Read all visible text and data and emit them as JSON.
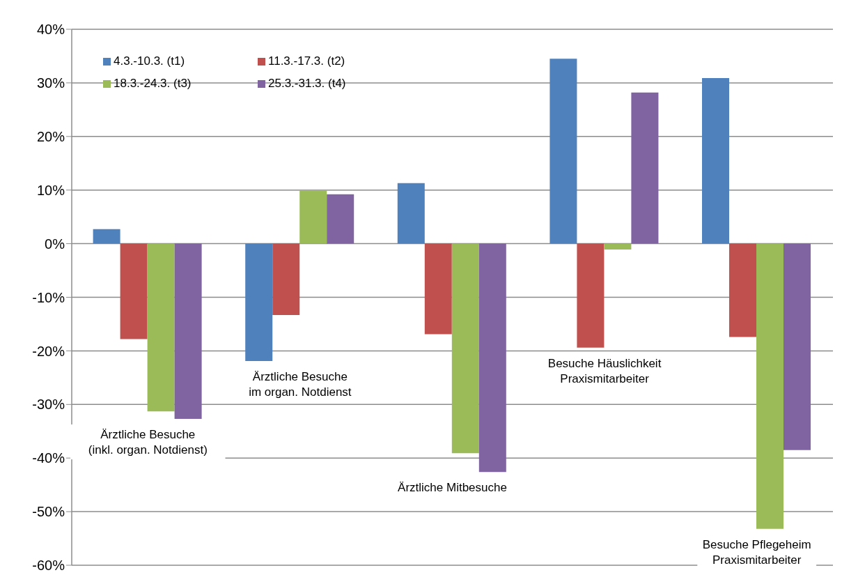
{
  "chart_data": {
    "type": "bar",
    "categories": [
      "Ärztliche Besuche\n(inkl. organ. Notdienst)",
      "Ärztliche Besuche\nim organ. Notdienst",
      "Ärztliche Mitbesuche",
      "Besuche Häuslichkeit\nPraxismitarbeiter",
      "Besuche Pflegeheim\nPraxismitarbeiter"
    ],
    "series": [
      {
        "name": "4.3.-10.3. (t1)",
        "color": "#4f81bd",
        "values": [
          2.7,
          -21.9,
          11.3,
          34.5,
          30.9
        ]
      },
      {
        "name": "11.3.-17.3. (t2)",
        "color": "#c0504d",
        "values": [
          -17.8,
          -13.3,
          -16.9,
          -19.4,
          -17.4
        ]
      },
      {
        "name": "18.3.-24.3. (t3)",
        "color": "#9bbb59",
        "values": [
          -31.3,
          9.9,
          -39.1,
          -1.1,
          -53.2
        ]
      },
      {
        "name": "25.3.-31.3. (t4)",
        "color": "#8064a2",
        "values": [
          -32.7,
          9.2,
          -42.6,
          28.2,
          -38.5
        ]
      }
    ],
    "ylim": [
      -60,
      40
    ],
    "yticks": [
      {
        "value": -60,
        "label": "-60%"
      },
      {
        "value": -50,
        "label": "-50%"
      },
      {
        "value": -40,
        "label": "-40%"
      },
      {
        "value": -30,
        "label": "-30%"
      },
      {
        "value": -20,
        "label": "-20%"
      },
      {
        "value": -10,
        "label": "-10%"
      },
      {
        "value": 0,
        "label": "0%"
      },
      {
        "value": 10,
        "label": "10%"
      },
      {
        "value": 20,
        "label": "20%"
      },
      {
        "value": 30,
        "label": "30%"
      },
      {
        "value": 40,
        "label": "40%"
      }
    ],
    "grid": "y",
    "legend": "top left"
  }
}
